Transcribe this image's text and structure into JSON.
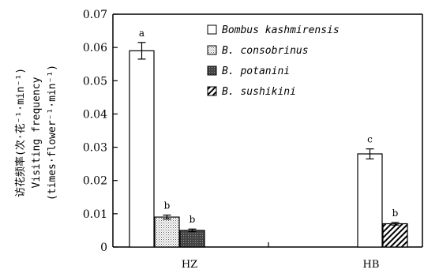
{
  "chart_data": {
    "type": "bar",
    "categories": [
      "HZ",
      "HB"
    ],
    "ylabel_cn": "访花频率(次·花⁻¹·min⁻¹)",
    "ylabel_en1": "Visiting frequency",
    "ylabel_en2": "(times·flower⁻¹·min⁻¹)",
    "ylim": [
      0,
      0.07
    ],
    "yticks": [
      "0",
      "0.01",
      "0.02",
      "0.03",
      "0.04",
      "0.05",
      "0.06",
      "0.07"
    ],
    "grid": false,
    "legend_position": "top-right",
    "series": [
      {
        "name": "Bombus kashmirensis",
        "values": [
          0.059,
          0.028
        ],
        "errors": [
          0.0025,
          0.0015
        ],
        "letters": [
          "a",
          "c"
        ],
        "pattern": "white"
      },
      {
        "name": "B. consobrinus",
        "values": [
          0.009,
          null
        ],
        "errors": [
          0.0006,
          null
        ],
        "letters": [
          "b",
          null
        ],
        "pattern": "dotted"
      },
      {
        "name": "B. potanini",
        "values": [
          0.005,
          null
        ],
        "errors": [
          0.0004,
          null
        ],
        "letters": [
          "b",
          null
        ],
        "pattern": "dark"
      },
      {
        "name": "B. sushikini",
        "values": [
          null,
          0.007
        ],
        "errors": [
          null,
          0.0004
        ],
        "letters": [
          null,
          "b"
        ],
        "pattern": "hatch"
      }
    ]
  }
}
